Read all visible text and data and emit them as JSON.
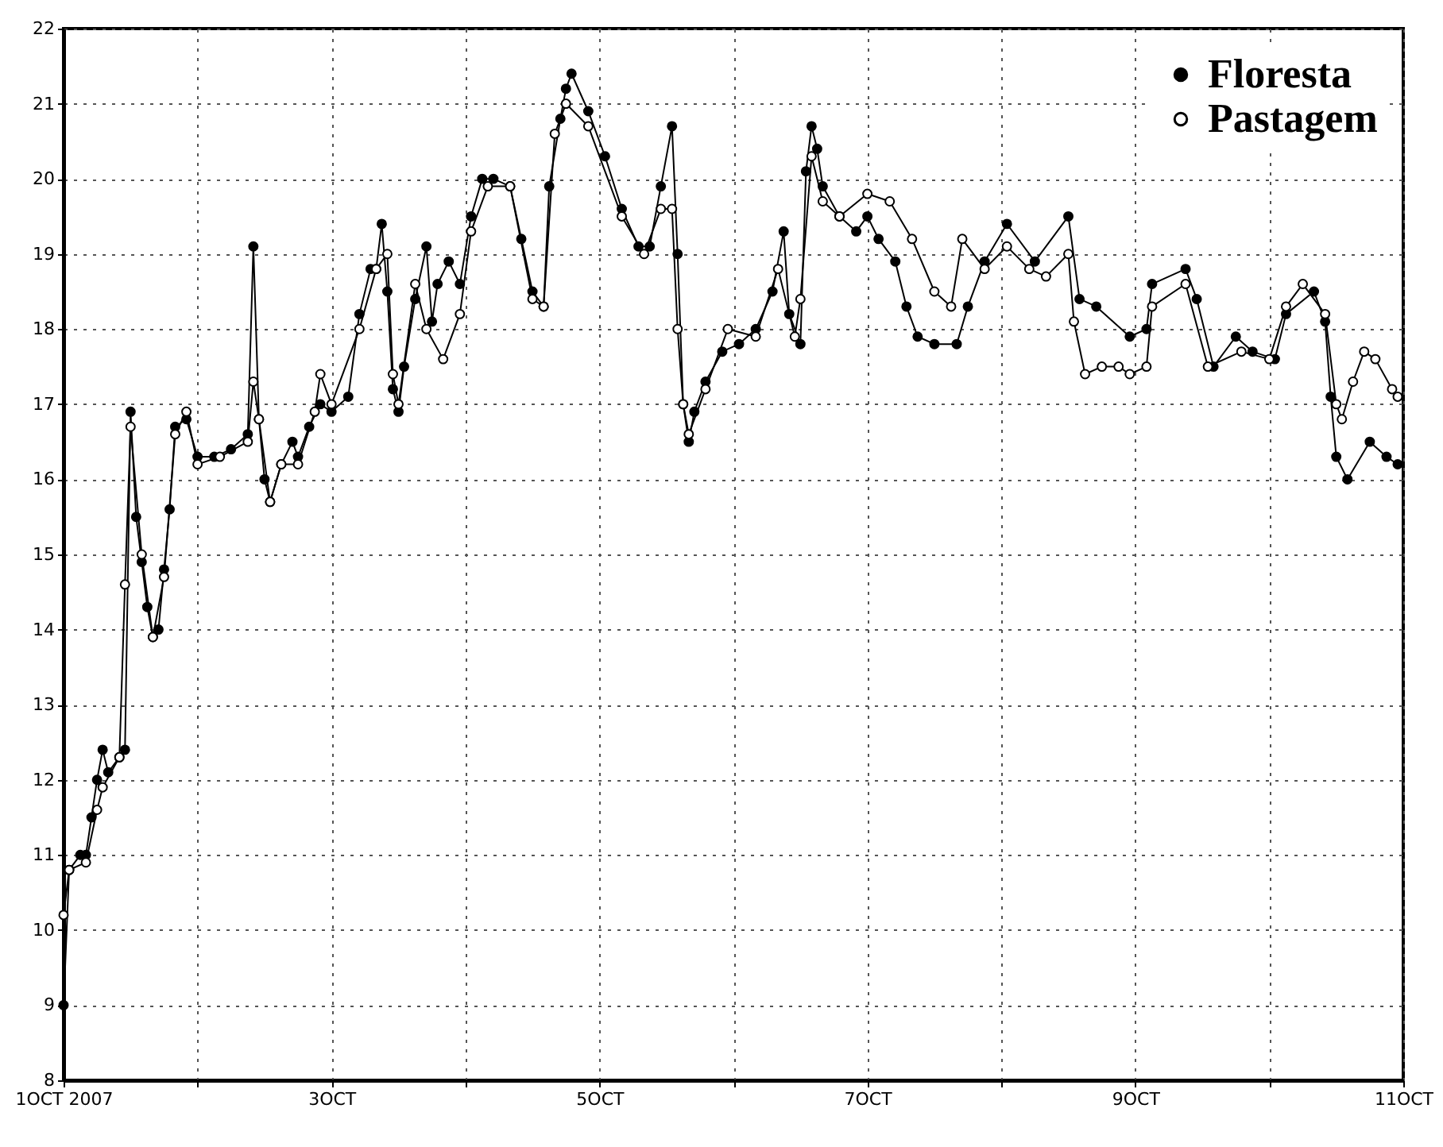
{
  "chart_data": {
    "type": "line",
    "marker": "circle",
    "grid": true,
    "legend": "top right",
    "xlim": [
      "2007-10-01",
      "2007-10-11"
    ],
    "xticks": [
      {
        "value": "2007-10-01",
        "label": "1OCT\n2007"
      },
      {
        "value": "2007-10-02",
        "label": null
      },
      {
        "value": "2007-10-03",
        "label": "3OCT"
      },
      {
        "value": "2007-10-04",
        "label": null
      },
      {
        "value": "2007-10-05",
        "label": "5OCT"
      },
      {
        "value": "2007-10-06",
        "label": null
      },
      {
        "value": "2007-10-07",
        "label": "7OCT"
      },
      {
        "value": "2007-10-08",
        "label": null
      },
      {
        "value": "2007-10-09",
        "label": "9OCT"
      },
      {
        "value": "2007-10-10",
        "label": null
      },
      {
        "value": "2007-10-11",
        "label": "11OCT"
      }
    ],
    "ylim": [
      8,
      22
    ],
    "yticks": [
      8,
      9,
      10,
      11,
      12,
      13,
      14,
      15,
      16,
      17,
      18,
      19,
      20,
      21,
      22
    ],
    "series": [
      {
        "name": "Floresta",
        "color": "#000000",
        "x": [
          "2007-10-01T00:00",
          "2007-10-01T01:00",
          "2007-10-01T03:00",
          "2007-10-01T04:00",
          "2007-10-01T05:00",
          "2007-10-01T06:00",
          "2007-10-01T07:00",
          "2007-10-01T08:00",
          "2007-10-01T10:00",
          "2007-10-01T11:00",
          "2007-10-01T12:00",
          "2007-10-01T13:00",
          "2007-10-01T14:00",
          "2007-10-01T15:00",
          "2007-10-01T16:00",
          "2007-10-01T17:00",
          "2007-10-01T18:00",
          "2007-10-01T19:00",
          "2007-10-01T20:00",
          "2007-10-01T22:00",
          "2007-10-02T00:00",
          "2007-10-02T03:00",
          "2007-10-02T06:00",
          "2007-10-02T09:00",
          "2007-10-02T10:00",
          "2007-10-02T11:00",
          "2007-10-02T12:00",
          "2007-10-02T13:00",
          "2007-10-02T15:00",
          "2007-10-02T17:00",
          "2007-10-02T18:00",
          "2007-10-02T20:00",
          "2007-10-02T22:00",
          "2007-10-03T00:00",
          "2007-10-03T03:00",
          "2007-10-03T05:00",
          "2007-10-03T07:00",
          "2007-10-03T08:00",
          "2007-10-03T09:00",
          "2007-10-03T10:00",
          "2007-10-03T11:00",
          "2007-10-03T12:00",
          "2007-10-03T13:00",
          "2007-10-03T15:00",
          "2007-10-03T17:00",
          "2007-10-03T18:00",
          "2007-10-03T19:00",
          "2007-10-03T21:00",
          "2007-10-03T23:00",
          "2007-10-04T01:00",
          "2007-10-04T03:00",
          "2007-10-04T05:00",
          "2007-10-04T08:00",
          "2007-10-04T10:00",
          "2007-10-04T12:00",
          "2007-10-04T14:00",
          "2007-10-04T15:00",
          "2007-10-04T17:00",
          "2007-10-04T18:00",
          "2007-10-04T19:00",
          "2007-10-04T22:00",
          "2007-10-05T01:00",
          "2007-10-05T04:00",
          "2007-10-05T07:00",
          "2007-10-05T09:00",
          "2007-10-05T11:00",
          "2007-10-05T13:00",
          "2007-10-05T14:00",
          "2007-10-05T15:00",
          "2007-10-05T16:00",
          "2007-10-05T17:00",
          "2007-10-05T19:00",
          "2007-10-05T22:00",
          "2007-10-06T01:00",
          "2007-10-06T04:00",
          "2007-10-06T07:00",
          "2007-10-06T09:00",
          "2007-10-06T10:00",
          "2007-10-06T12:00",
          "2007-10-06T13:00",
          "2007-10-06T14:00",
          "2007-10-06T15:00",
          "2007-10-06T16:00",
          "2007-10-06T19:00",
          "2007-10-06T22:00",
          "2007-10-07T00:00",
          "2007-10-07T02:00",
          "2007-10-07T05:00",
          "2007-10-07T07:00",
          "2007-10-07T09:00",
          "2007-10-07T12:00",
          "2007-10-07T16:00",
          "2007-10-07T18:00",
          "2007-10-07T21:00",
          "2007-10-08T01:00",
          "2007-10-08T06:00",
          "2007-10-08T12:00",
          "2007-10-08T14:00",
          "2007-10-08T17:00",
          "2007-10-08T23:00",
          "2007-10-09T02:00",
          "2007-10-09T03:00",
          "2007-10-09T09:00",
          "2007-10-09T11:00",
          "2007-10-09T14:00",
          "2007-10-09T18:00",
          "2007-10-09T21:00",
          "2007-10-10T01:00",
          "2007-10-10T03:00",
          "2007-10-10T08:00",
          "2007-10-10T10:00",
          "2007-10-10T11:00",
          "2007-10-10T12:00",
          "2007-10-10T14:00",
          "2007-10-10T18:00",
          "2007-10-10T21:00",
          "2007-10-10T23:00"
        ],
        "values": [
          9.0,
          10.8,
          11.0,
          11.0,
          11.5,
          12.0,
          12.4,
          12.1,
          12.3,
          12.4,
          16.9,
          15.5,
          14.9,
          14.3,
          13.9,
          14.0,
          14.8,
          15.6,
          16.7,
          16.8,
          16.3,
          16.3,
          16.4,
          16.6,
          19.1,
          16.8,
          16.0,
          15.7,
          16.2,
          16.5,
          16.3,
          16.7,
          17.0,
          16.9,
          17.1,
          18.2,
          18.8,
          18.8,
          19.4,
          18.5,
          17.2,
          16.9,
          17.5,
          18.4,
          19.1,
          18.1,
          18.6,
          18.9,
          18.6,
          19.5,
          20.0,
          20.0,
          19.9,
          19.2,
          18.5,
          18.3,
          19.9,
          20.8,
          21.2,
          21.4,
          20.9,
          20.3,
          19.6,
          19.1,
          19.1,
          19.9,
          20.7,
          19.0,
          17.0,
          16.5,
          16.9,
          17.3,
          17.7,
          17.8,
          18.0,
          18.5,
          19.3,
          18.2,
          17.8,
          20.1,
          20.7,
          20.4,
          19.9,
          19.5,
          19.3,
          19.5,
          19.2,
          18.9,
          18.3,
          17.9,
          17.8,
          17.8,
          18.3,
          18.9,
          19.4,
          18.9,
          19.5,
          18.4,
          18.3,
          17.9,
          18.0,
          18.6,
          18.8,
          18.4,
          17.5,
          17.9,
          17.7,
          17.6,
          18.2,
          18.5,
          18.1,
          17.1,
          16.3,
          16.0,
          16.5,
          16.3,
          16.2
        ]
      },
      {
        "name": "Pastagem",
        "color": "#000000",
        "x": [
          "2007-10-01T00:00",
          "2007-10-01T01:00",
          "2007-10-01T04:00",
          "2007-10-01T06:00",
          "2007-10-01T07:00",
          "2007-10-01T10:00",
          "2007-10-01T11:00",
          "2007-10-01T12:00",
          "2007-10-01T14:00",
          "2007-10-01T16:00",
          "2007-10-01T18:00",
          "2007-10-01T20:00",
          "2007-10-01T22:00",
          "2007-10-02T00:00",
          "2007-10-02T04:00",
          "2007-10-02T09:00",
          "2007-10-02T10:00",
          "2007-10-02T11:00",
          "2007-10-02T13:00",
          "2007-10-02T15:00",
          "2007-10-02T18:00",
          "2007-10-02T21:00",
          "2007-10-02T22:00",
          "2007-10-03T00:00",
          "2007-10-03T05:00",
          "2007-10-03T08:00",
          "2007-10-03T10:00",
          "2007-10-03T11:00",
          "2007-10-03T12:00",
          "2007-10-03T15:00",
          "2007-10-03T17:00",
          "2007-10-03T20:00",
          "2007-10-03T23:00",
          "2007-10-04T01:00",
          "2007-10-04T04:00",
          "2007-10-04T08:00",
          "2007-10-04T12:00",
          "2007-10-04T14:00",
          "2007-10-04T16:00",
          "2007-10-04T18:00",
          "2007-10-04T22:00",
          "2007-10-05T04:00",
          "2007-10-05T08:00",
          "2007-10-05T11:00",
          "2007-10-05T13:00",
          "2007-10-05T14:00",
          "2007-10-05T15:00",
          "2007-10-05T16:00",
          "2007-10-05T19:00",
          "2007-10-05T23:00",
          "2007-10-06T04:00",
          "2007-10-06T08:00",
          "2007-10-06T11:00",
          "2007-10-06T12:00",
          "2007-10-06T14:00",
          "2007-10-06T16:00",
          "2007-10-06T19:00",
          "2007-10-07T00:00",
          "2007-10-07T04:00",
          "2007-10-07T08:00",
          "2007-10-07T12:00",
          "2007-10-07T15:00",
          "2007-10-07T17:00",
          "2007-10-07T21:00",
          "2007-10-08T01:00",
          "2007-10-08T05:00",
          "2007-10-08T08:00",
          "2007-10-08T12:00",
          "2007-10-08T13:00",
          "2007-10-08T15:00",
          "2007-10-08T18:00",
          "2007-10-08T21:00",
          "2007-10-08T23:00",
          "2007-10-09T02:00",
          "2007-10-09T03:00",
          "2007-10-09T09:00",
          "2007-10-09T13:00",
          "2007-10-09T19:00",
          "2007-10-10T00:00",
          "2007-10-10T03:00",
          "2007-10-10T06:00",
          "2007-10-10T10:00",
          "2007-10-10T12:00",
          "2007-10-10T13:00",
          "2007-10-10T15:00",
          "2007-10-10T17:00",
          "2007-10-10T19:00",
          "2007-10-10T22:00",
          "2007-10-10T23:00"
        ],
        "values": [
          10.2,
          10.8,
          10.9,
          11.6,
          11.9,
          12.3,
          14.6,
          16.7,
          15.0,
          13.9,
          14.7,
          16.6,
          16.9,
          16.2,
          16.3,
          16.5,
          17.3,
          16.8,
          15.7,
          16.2,
          16.2,
          16.9,
          17.4,
          17.0,
          18.0,
          18.8,
          19.0,
          17.4,
          17.0,
          18.6,
          18.0,
          17.6,
          18.2,
          19.3,
          19.9,
          19.9,
          18.4,
          18.3,
          20.6,
          21.0,
          20.7,
          19.5,
          19.0,
          19.6,
          19.6,
          18.0,
          17.0,
          16.6,
          17.2,
          18.0,
          17.9,
          18.8,
          17.9,
          18.4,
          20.3,
          19.7,
          19.5,
          19.8,
          19.7,
          19.2,
          18.5,
          18.3,
          19.2,
          18.8,
          19.1,
          18.8,
          18.7,
          19.0,
          18.1,
          17.4,
          17.5,
          17.5,
          17.4,
          17.5,
          18.3,
          18.6,
          17.5,
          17.7,
          17.6,
          18.3,
          18.6,
          18.2,
          17.0,
          16.8,
          17.3,
          17.7,
          17.6,
          17.2,
          17.1
        ]
      }
    ]
  }
}
